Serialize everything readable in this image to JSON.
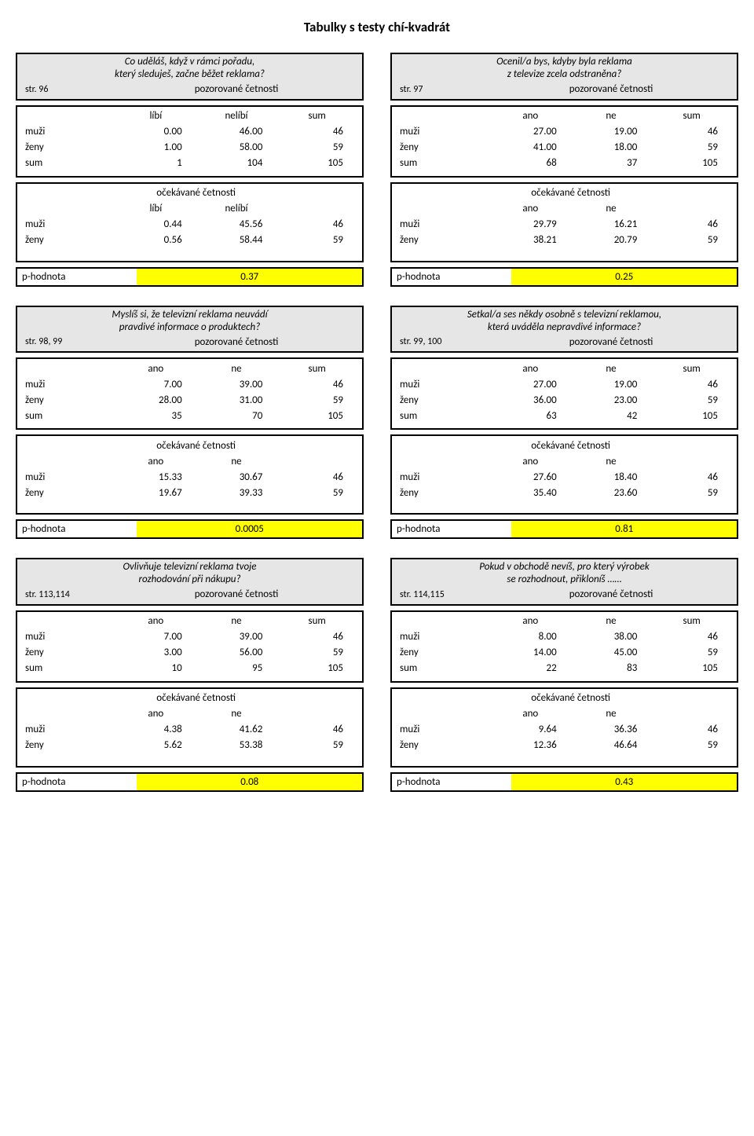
{
  "page_title": "Tabulky s testy chí-kvadrát",
  "labels": {
    "muzi": "muži",
    "zeny": "ženy",
    "sum": "sum",
    "ano": "ano",
    "ne": "ne",
    "libi": "líbí",
    "nelibi": "nelíbí",
    "observed": "pozorované četnosti",
    "expected": "očekávané četnosti",
    "pvalue": "p-hodnota"
  },
  "colors": {
    "header_bg": "#e6e6e6",
    "highlight": "#ffff00",
    "border": "#000000",
    "text": "#000000",
    "background": "#ffffff"
  },
  "blocks": [
    {
      "q1": "Co uděláš, když v rámci pořadu,",
      "q2": "který sleduješ, začne běžet reklama?",
      "ref": "str. 96",
      "col1": "líbí",
      "col2": "nelíbí",
      "obs": {
        "muzi": [
          "0.00",
          "46.00",
          "46"
        ],
        "zeny": [
          "1.00",
          "58.00",
          "59"
        ],
        "sum": [
          "1",
          "104",
          "105"
        ]
      },
      "exp": {
        "muzi": [
          "0.44",
          "45.56",
          "46"
        ],
        "zeny": [
          "0.56",
          "58.44",
          "59"
        ]
      },
      "p": "0.37"
    },
    {
      "q1": "Ocenil/a bys, kdyby byla reklama",
      "q2": "z televize zcela odstraněna?",
      "ref": "str. 97",
      "col1": "ano",
      "col2": "ne",
      "obs": {
        "muzi": [
          "27.00",
          "19.00",
          "46"
        ],
        "zeny": [
          "41.00",
          "18.00",
          "59"
        ],
        "sum": [
          "68",
          "37",
          "105"
        ]
      },
      "exp": {
        "muzi": [
          "29.79",
          "16.21",
          "46"
        ],
        "zeny": [
          "38.21",
          "20.79",
          "59"
        ]
      },
      "p": "0.25"
    },
    {
      "q1": "Myslíš si, že televizní reklama neuvádí",
      "q2": "pravdivé informace o produktech?",
      "ref": "str. 98, 99",
      "col1": "ano",
      "col2": "ne",
      "obs": {
        "muzi": [
          "7.00",
          "39.00",
          "46"
        ],
        "zeny": [
          "28.00",
          "31.00",
          "59"
        ],
        "sum": [
          "35",
          "70",
          "105"
        ]
      },
      "exp": {
        "muzi": [
          "15.33",
          "30.67",
          "46"
        ],
        "zeny": [
          "19.67",
          "39.33",
          "59"
        ]
      },
      "p": "0.0005"
    },
    {
      "q1": "Setkal/a ses někdy osobně s televizní reklamou,",
      "q2": "která uváděla nepravdivé informace?",
      "ref": "str. 99, 100",
      "col1": "ano",
      "col2": "ne",
      "obs": {
        "muzi": [
          "27.00",
          "19.00",
          "46"
        ],
        "zeny": [
          "36.00",
          "23.00",
          "59"
        ],
        "sum": [
          "63",
          "42",
          "105"
        ]
      },
      "exp": {
        "muzi": [
          "27.60",
          "18.40",
          "46"
        ],
        "zeny": [
          "35.40",
          "23.60",
          "59"
        ]
      },
      "p": "0.81"
    },
    {
      "q1": "Ovlivňuje televizní reklama tvoje",
      "q2": "rozhodování při nákupu?",
      "ref": "str. 113,114",
      "col1": "ano",
      "col2": "ne",
      "obs": {
        "muzi": [
          "7.00",
          "39.00",
          "46"
        ],
        "zeny": [
          "3.00",
          "56.00",
          "59"
        ],
        "sum": [
          "10",
          "95",
          "105"
        ]
      },
      "exp": {
        "muzi": [
          "4.38",
          "41.62",
          "46"
        ],
        "zeny": [
          "5.62",
          "53.38",
          "59"
        ]
      },
      "p": "0.08"
    },
    {
      "q1": "Pokud v obchodě nevíš, pro který výrobek",
      "q2": "se rozhodnout, přikloníš ……",
      "ref": "str. 114,115",
      "col1": "ano",
      "col2": "ne",
      "obs": {
        "muzi": [
          "8.00",
          "38.00",
          "46"
        ],
        "zeny": [
          "14.00",
          "45.00",
          "59"
        ],
        "sum": [
          "22",
          "83",
          "105"
        ]
      },
      "exp": {
        "muzi": [
          "9.64",
          "36.36",
          "46"
        ],
        "zeny": [
          "12.36",
          "46.64",
          "59"
        ]
      },
      "p": "0.43"
    }
  ]
}
